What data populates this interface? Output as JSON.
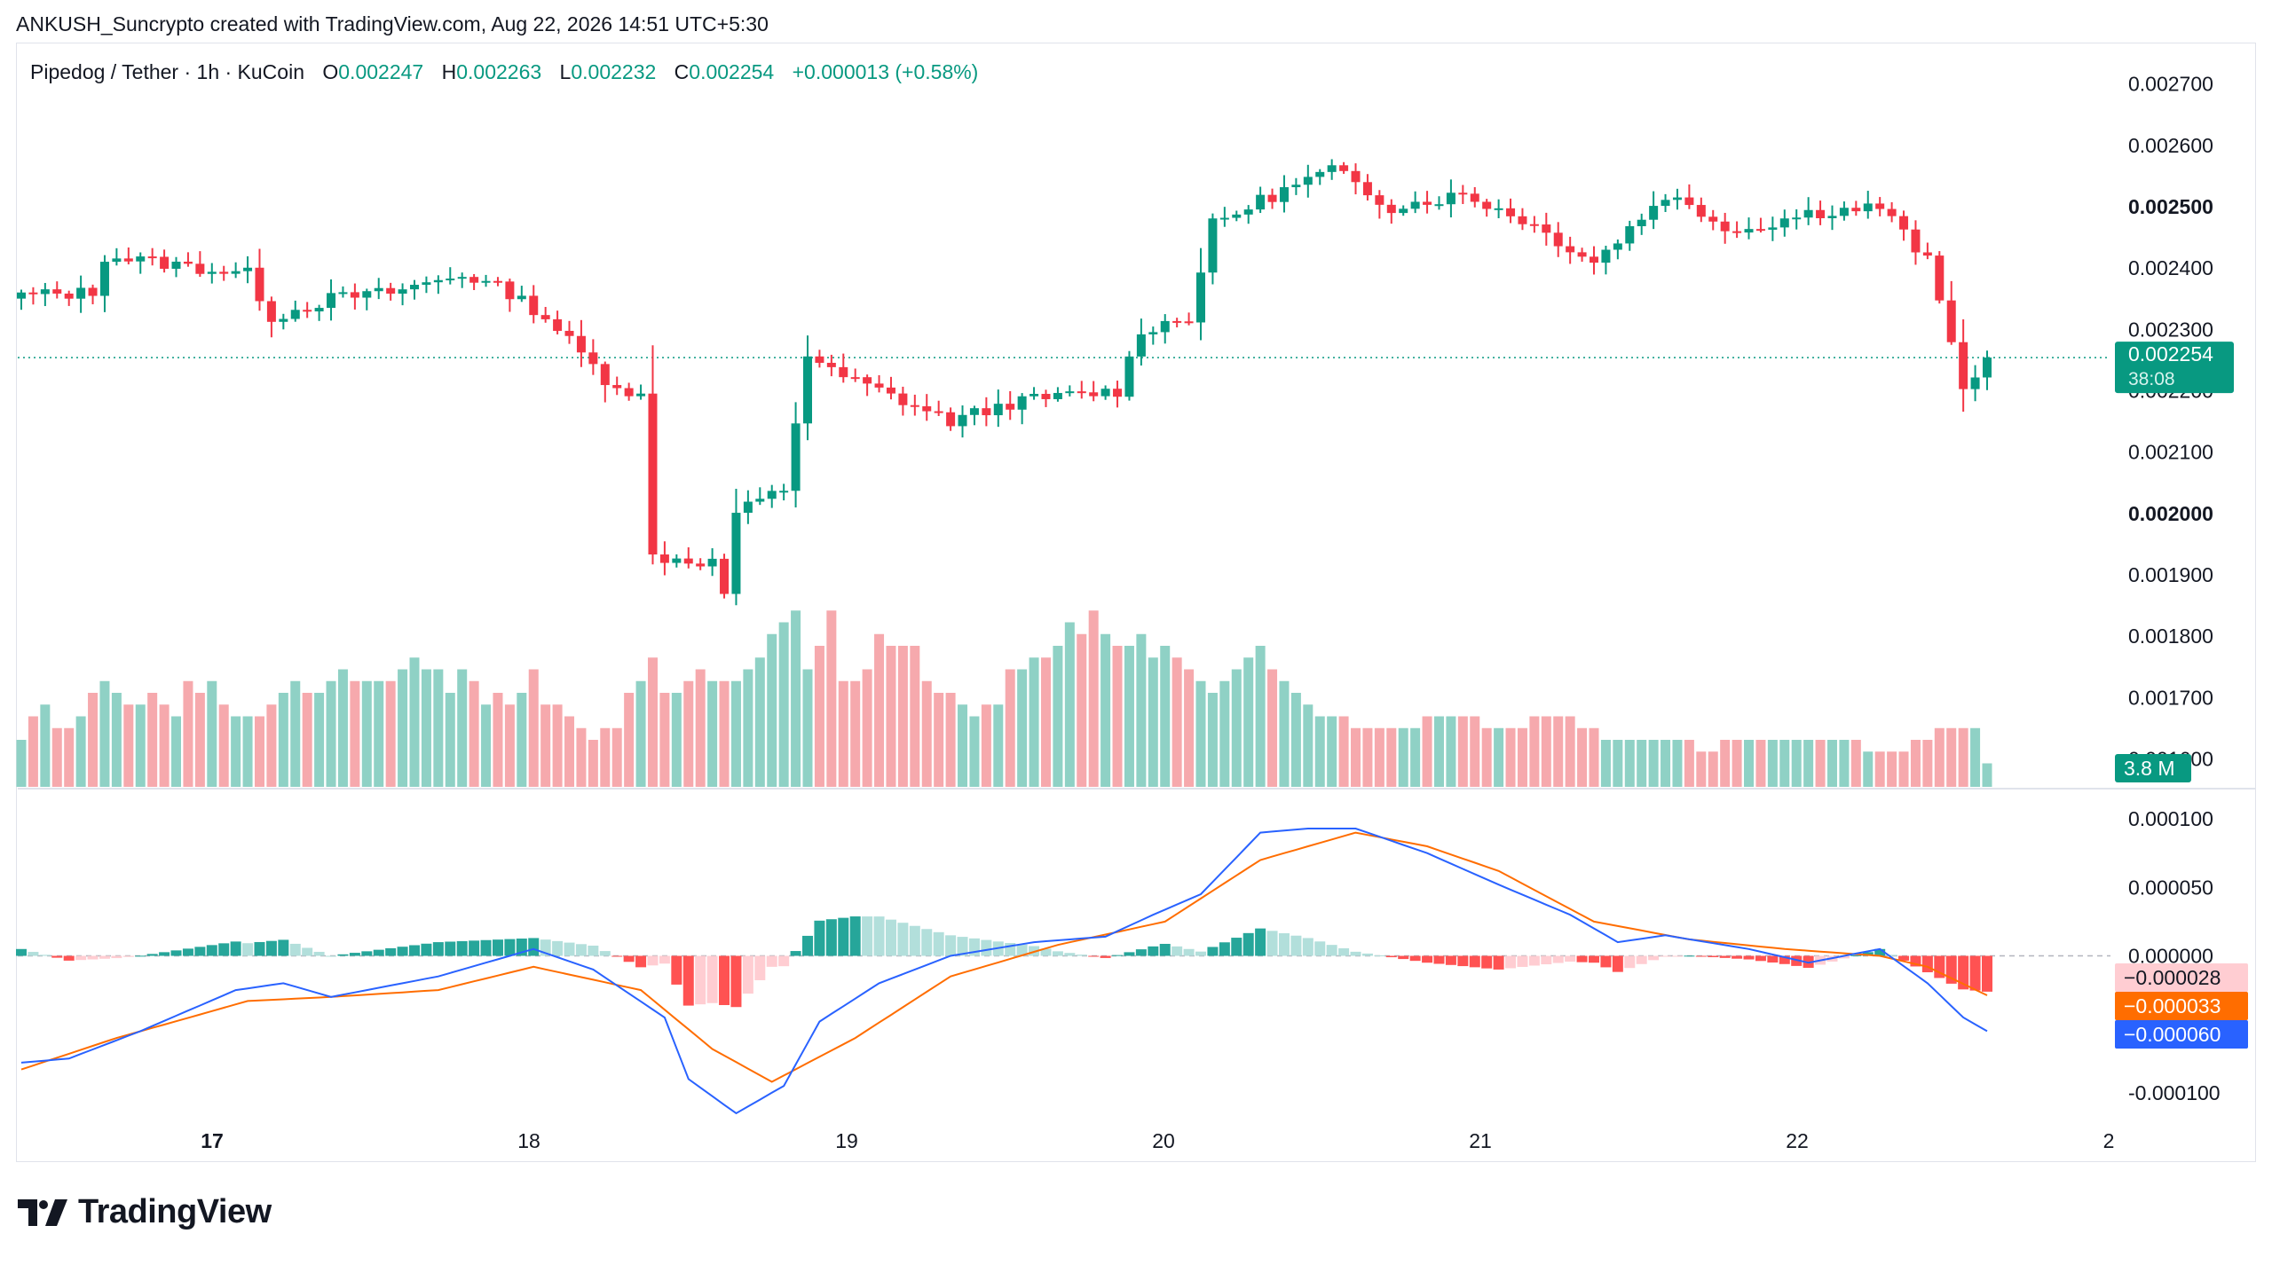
{
  "attribution": "ANKUSH_Suncrypto created with TradingView.com, Aug 22, 2026 14:51 UTC+5:30",
  "legend": {
    "symbol": "Pipedog / Tether · 1h · KuCoin",
    "open_label": "O",
    "open": "0.002247",
    "high_label": "H",
    "high": "0.002263",
    "low_label": "L",
    "low": "0.002232",
    "close_label": "C",
    "close": "0.002254",
    "change": "+0.000013 (+0.58%)"
  },
  "brand": "TradingView",
  "colors": {
    "up": "#089981",
    "down": "#f23645",
    "vol_up": "#8fd1c5",
    "vol_down": "#f6a9ad",
    "hist_up_strong": "#26a69a",
    "hist_up_weak": "#b2dfdb",
    "hist_down_strong": "#ff5252",
    "hist_down_weak": "#ffcdd2",
    "macd_line": "#2962ff",
    "signal_line": "#ff6d00"
  },
  "chart_data": {
    "type": "candlestick",
    "x_axis": {
      "tick_labels": [
        "17",
        "18",
        "19",
        "20",
        "21",
        "22",
        "2"
      ]
    },
    "price_axis": {
      "range": [
        0.00155,
        0.00275
      ],
      "tick_labels": [
        "0.002700",
        "0.002600",
        "0.002500",
        "0.002400",
        "0.002300",
        "0.002200",
        "0.002100",
        "0.002000",
        "0.001900",
        "0.001800",
        "0.001700",
        "0.001600"
      ],
      "bold_ticks": [
        "0.002500",
        "0.002000"
      ]
    },
    "last_price": {
      "value": 0.002254,
      "label": "0.002254",
      "countdown": "38:08"
    },
    "volume_badge": "3.8 M",
    "anchors": [
      {
        "bar": 0,
        "price": 0.002355
      },
      {
        "bar": 6,
        "price": 0.00236
      },
      {
        "bar": 7,
        "price": 0.00242
      },
      {
        "bar": 19,
        "price": 0.00239
      },
      {
        "bar": 21,
        "price": 0.00232
      },
      {
        "bar": 26,
        "price": 0.00235
      },
      {
        "bar": 31,
        "price": 0.00236
      },
      {
        "bar": 37,
        "price": 0.00239
      },
      {
        "bar": 41,
        "price": 0.00236
      },
      {
        "bar": 44,
        "price": 0.00232
      },
      {
        "bar": 49,
        "price": 0.00222
      },
      {
        "bar": 52,
        "price": 0.00219
      },
      {
        "bar": 53,
        "price": 0.00193
      },
      {
        "bar": 58,
        "price": 0.00192
      },
      {
        "bar": 59,
        "price": 0.00187
      },
      {
        "bar": 60,
        "price": 0.002
      },
      {
        "bar": 64,
        "price": 0.00204
      },
      {
        "bar": 66,
        "price": 0.00226
      },
      {
        "bar": 68,
        "price": 0.00223
      },
      {
        "bar": 72,
        "price": 0.0022
      },
      {
        "bar": 78,
        "price": 0.00215
      },
      {
        "bar": 83,
        "price": 0.00218
      },
      {
        "bar": 87,
        "price": 0.00219
      },
      {
        "bar": 92,
        "price": 0.0022
      },
      {
        "bar": 94,
        "price": 0.0023
      },
      {
        "bar": 98,
        "price": 0.00232
      },
      {
        "bar": 100,
        "price": 0.00247
      },
      {
        "bar": 104,
        "price": 0.00251
      },
      {
        "bar": 110,
        "price": 0.00256
      },
      {
        "bar": 115,
        "price": 0.0025
      },
      {
        "bar": 121,
        "price": 0.00252
      },
      {
        "bar": 126,
        "price": 0.00248
      },
      {
        "bar": 132,
        "price": 0.00241
      },
      {
        "bar": 138,
        "price": 0.00252
      },
      {
        "bar": 144,
        "price": 0.00246
      },
      {
        "bar": 150,
        "price": 0.00249
      },
      {
        "bar": 156,
        "price": 0.0025
      },
      {
        "bar": 160,
        "price": 0.00241
      },
      {
        "bar": 163,
        "price": 0.00221
      },
      {
        "bar": 165,
        "price": 0.002225
      },
      {
        "bar": 166,
        "price": 0.002254
      }
    ],
    "volume_scale_max": 16,
    "volume_values": [
      4,
      6,
      7,
      5,
      5,
      6,
      8,
      9,
      8,
      7,
      7,
      8,
      7,
      6,
      9,
      8,
      9,
      7,
      6,
      6,
      6,
      7,
      8,
      9,
      8,
      8,
      9,
      10,
      9,
      9,
      9,
      9,
      10,
      11,
      10,
      10,
      8,
      10,
      9,
      7,
      8,
      7,
      8,
      10,
      7,
      7,
      6,
      5,
      4,
      5,
      5,
      8,
      9,
      11,
      8,
      8,
      9,
      10,
      9,
      9,
      9,
      10,
      11,
      13,
      14,
      15,
      10,
      12,
      15,
      9,
      9,
      10,
      13,
      12,
      12,
      12,
      9,
      8,
      8,
      7,
      6,
      7,
      7,
      10,
      10,
      11,
      11,
      12,
      14,
      13,
      15,
      13,
      12,
      12,
      13,
      11,
      12,
      11,
      10,
      9,
      8,
      9,
      10,
      11,
      12,
      10,
      9,
      8,
      7,
      6,
      6,
      6,
      5,
      5,
      5,
      5,
      5,
      5,
      6,
      6,
      6,
      6,
      6,
      5,
      5,
      5,
      5,
      6,
      6,
      6,
      6,
      5,
      5,
      4,
      4,
      4,
      4,
      4,
      4,
      4,
      4,
      3,
      3,
      4,
      4,
      4,
      4,
      4,
      4,
      4,
      4,
      4,
      4,
      4,
      4,
      3,
      3,
      3,
      3,
      4,
      4,
      5,
      5,
      5,
      5,
      2
    ],
    "macd": {
      "axis_range": [
        -0.000115,
        0.000115
      ],
      "tick_labels": [
        "0.000100",
        "0.000050",
        "0.000000",
        "-0.000100"
      ],
      "values": {
        "histogram": "−0.000028",
        "signal": "−0.000033",
        "macd": "−0.000060"
      },
      "macd_anchors": [
        {
          "bar": 0,
          "v": -7.8e-05
        },
        {
          "bar": 4,
          "v": -7.5e-05
        },
        {
          "bar": 10,
          "v": -5.5e-05
        },
        {
          "bar": 18,
          "v": -2.5e-05
        },
        {
          "bar": 22,
          "v": -2e-05
        },
        {
          "bar": 26,
          "v": -3e-05
        },
        {
          "bar": 35,
          "v": -1.5e-05
        },
        {
          "bar": 43,
          "v": 5e-06
        },
        {
          "bar": 48,
          "v": -1e-05
        },
        {
          "bar": 54,
          "v": -4.5e-05
        },
        {
          "bar": 56,
          "v": -9e-05
        },
        {
          "bar": 60,
          "v": -0.000115
        },
        {
          "bar": 64,
          "v": -9.5e-05
        },
        {
          "bar": 67,
          "v": -4.8e-05
        },
        {
          "bar": 72,
          "v": -2e-05
        },
        {
          "bar": 78,
          "v": 0.0
        },
        {
          "bar": 85,
          "v": 1e-05
        },
        {
          "bar": 91,
          "v": 1.4e-05
        },
        {
          "bar": 95,
          "v": 3e-05
        },
        {
          "bar": 99,
          "v": 4.5e-05
        },
        {
          "bar": 104,
          "v": 9e-05
        },
        {
          "bar": 108,
          "v": 9.3e-05
        },
        {
          "bar": 112,
          "v": 9.3e-05
        },
        {
          "bar": 118,
          "v": 7.5e-05
        },
        {
          "bar": 124,
          "v": 5.2e-05
        },
        {
          "bar": 130,
          "v": 3e-05
        },
        {
          "bar": 134,
          "v": 1e-05
        },
        {
          "bar": 138,
          "v": 1.5e-05
        },
        {
          "bar": 145,
          "v": 5e-06
        },
        {
          "bar": 150,
          "v": -5e-06
        },
        {
          "bar": 156,
          "v": 5e-06
        },
        {
          "bar": 160,
          "v": -2e-05
        },
        {
          "bar": 163,
          "v": -4.5e-05
        },
        {
          "bar": 166,
          "v": -6e-05
        }
      ],
      "signal_anchors": [
        {
          "bar": 0,
          "v": -8.3e-05
        },
        {
          "bar": 8,
          "v": -6e-05
        },
        {
          "bar": 19,
          "v": -3.3e-05
        },
        {
          "bar": 26,
          "v": -3e-05
        },
        {
          "bar": 35,
          "v": -2.5e-05
        },
        {
          "bar": 43,
          "v": -8e-06
        },
        {
          "bar": 52,
          "v": -2.5e-05
        },
        {
          "bar": 58,
          "v": -6.8e-05
        },
        {
          "bar": 63,
          "v": -9.2e-05
        },
        {
          "bar": 70,
          "v": -6e-05
        },
        {
          "bar": 78,
          "v": -1.5e-05
        },
        {
          "bar": 87,
          "v": 8e-06
        },
        {
          "bar": 96,
          "v": 2.5e-05
        },
        {
          "bar": 104,
          "v": 7e-05
        },
        {
          "bar": 112,
          "v": 9e-05
        },
        {
          "bar": 118,
          "v": 8e-05
        },
        {
          "bar": 124,
          "v": 6.2e-05
        },
        {
          "bar": 132,
          "v": 2.5e-05
        },
        {
          "bar": 140,
          "v": 1.2e-05
        },
        {
          "bar": 148,
          "v": 5e-06
        },
        {
          "bar": 156,
          "v": 0.0
        },
        {
          "bar": 160,
          "v": -8e-06
        },
        {
          "bar": 166,
          "v": -3.3e-05
        }
      ]
    }
  }
}
